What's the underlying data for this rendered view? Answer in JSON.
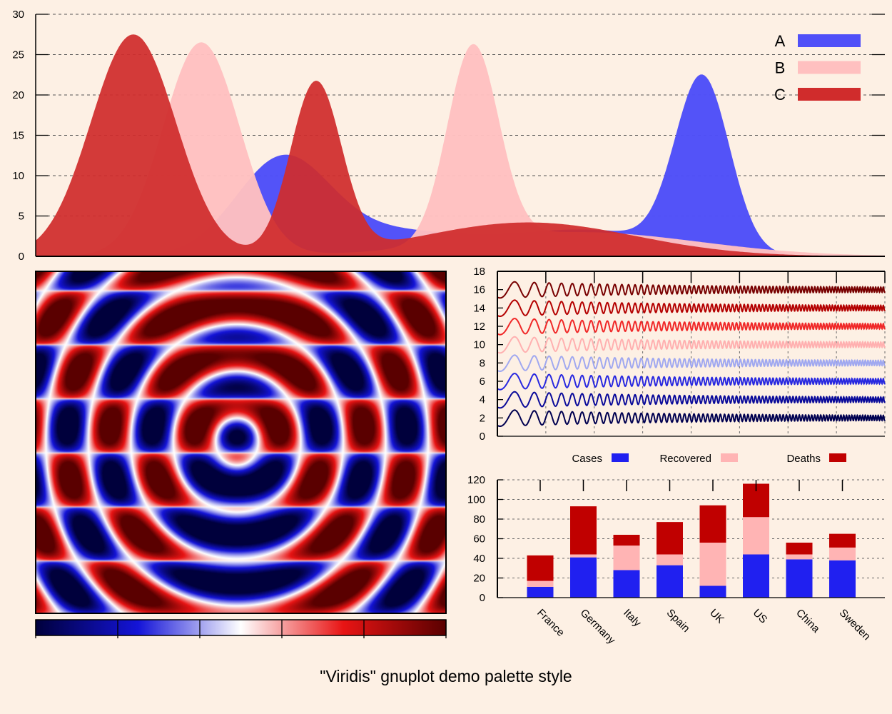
{
  "figure_title": "\"Viridis\" gnuplot demo palette style",
  "colors": {
    "background": "#fdf0e4",
    "A": "#5050f8",
    "B": "#ffc0c0",
    "C": "#d02c2c",
    "cases": "#2020f0",
    "recovered": "#ffb4b4",
    "deaths": "#c00000"
  },
  "chart_data": [
    {
      "type": "area",
      "title": "",
      "xlim": [
        0,
        10
      ],
      "ylim": [
        0,
        30
      ],
      "yticks": [
        "0",
        "5",
        "10",
        "15",
        "20",
        "25",
        "30"
      ],
      "grid": true,
      "legend_position": "top-right",
      "series": [
        {
          "name": "A",
          "color": "#5050f8",
          "opacity": 0.98,
          "peaks": [
            {
              "center": 2.9,
              "height": 11.5,
              "width": 0.55
            },
            {
              "center": 4.2,
              "height": 3.0,
              "width": 0.9
            },
            {
              "center": 6.5,
              "height": 3.2,
              "width": 0.9
            },
            {
              "center": 7.85,
              "height": 21.5,
              "width": 0.32
            }
          ]
        },
        {
          "name": "B",
          "color": "#ffc0c0",
          "opacity": 0.97,
          "peaks": [
            {
              "center": 1.95,
              "height": 26.5,
              "width": 0.45
            },
            {
              "center": 5.15,
              "height": 24.3,
              "width": 0.3
            },
            {
              "center": 6.4,
              "height": 3.0,
              "width": 1.4
            }
          ]
        },
        {
          "name": "C",
          "color": "#d02c2c",
          "opacity": 0.93,
          "peaks": [
            {
              "center": 1.15,
              "height": 27.5,
              "width": 0.5
            },
            {
              "center": 3.3,
              "height": 21.2,
              "width": 0.3
            },
            {
              "center": 5.8,
              "height": 4.2,
              "width": 1.25
            }
          ]
        }
      ]
    },
    {
      "type": "heatmap",
      "title": "",
      "palette": [
        "#00003c",
        "#1414d8",
        "#ffffff",
        "#e81414",
        "#5a0000"
      ],
      "function": "cos(fx*x)*cos(fy*y) style concentric interference bands",
      "colorbox": true
    },
    {
      "type": "line",
      "title": "",
      "ylim": [
        0,
        18
      ],
      "yticks": [
        "0",
        "2",
        "4",
        "6",
        "8",
        "10",
        "12",
        "14",
        "16",
        "18"
      ],
      "series": [
        {
          "offset": 2,
          "color": "#000050"
        },
        {
          "offset": 4,
          "color": "#0a0a9a"
        },
        {
          "offset": 6,
          "color": "#2828e0"
        },
        {
          "offset": 8,
          "color": "#a0a8f0"
        },
        {
          "offset": 10,
          "color": "#ffb0b0"
        },
        {
          "offset": 12,
          "color": "#f02828"
        },
        {
          "offset": 14,
          "color": "#b40000"
        },
        {
          "offset": 16,
          "color": "#780000"
        }
      ]
    },
    {
      "type": "bar",
      "stacked": true,
      "title": "",
      "ylim": [
        0,
        120
      ],
      "yticks": [
        "0",
        "20",
        "40",
        "60",
        "80",
        "100",
        "120"
      ],
      "legend_position": "top",
      "categories": [
        "France",
        "Germany",
        "Italy",
        "Spain",
        "UK",
        "US",
        "China",
        "Sweden"
      ],
      "series": [
        {
          "name": "Cases",
          "color": "#2020f0",
          "values": [
            11,
            41,
            28,
            33,
            12,
            44,
            39,
            38
          ]
        },
        {
          "name": "Recovered",
          "color": "#ffb4b4",
          "values": [
            6,
            3,
            25,
            11,
            44,
            38,
            5,
            13
          ]
        },
        {
          "name": "Deaths",
          "color": "#c00000",
          "values": [
            26,
            49,
            11,
            33,
            38,
            34,
            12,
            14
          ]
        }
      ]
    }
  ]
}
